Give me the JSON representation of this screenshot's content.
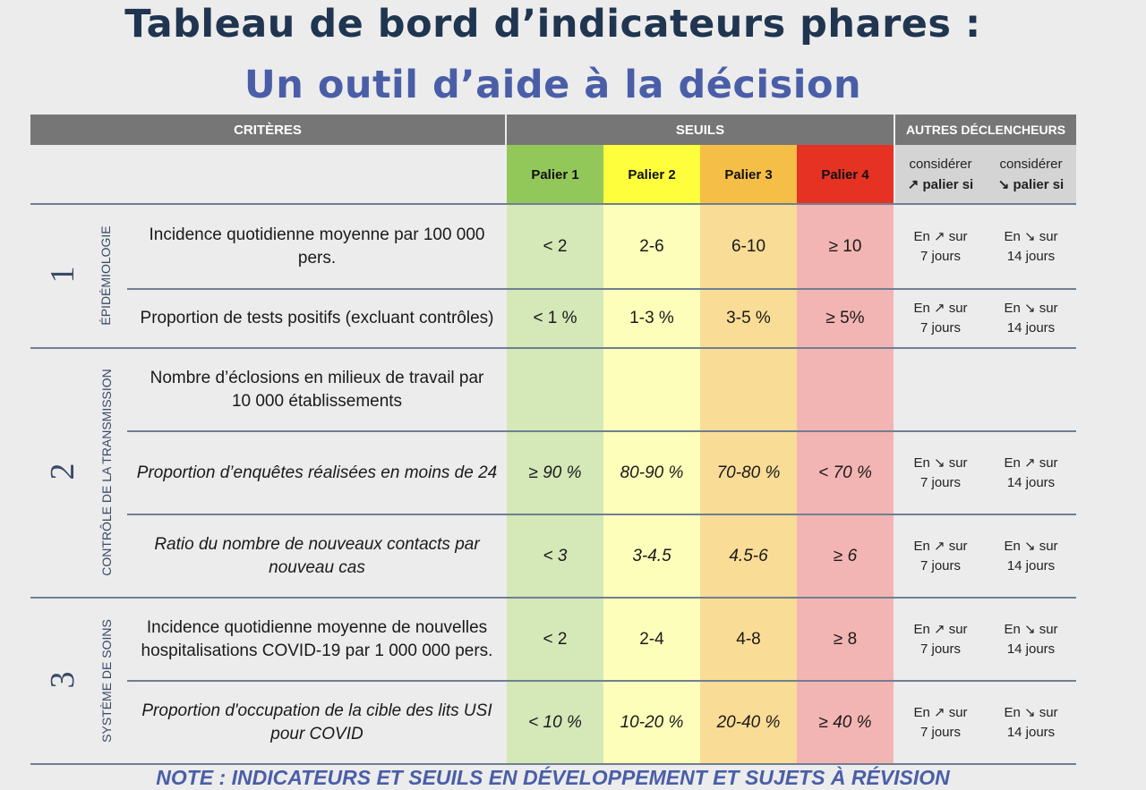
{
  "title": {
    "line1": "Tableau de bord d’indicateurs phares :",
    "line2": "Un outil d’aide à la décision"
  },
  "header": {
    "criteres": "CRITÈRES",
    "seuils": "SEUILS",
    "autres": "AUTRES DÉCLENCHEURS"
  },
  "paliers": [
    "Palier 1",
    "Palier 2",
    "Palier 3",
    "Palier 4"
  ],
  "colors": {
    "palier_headers": [
      "#92c85a",
      "#fefe3c",
      "#f5be46",
      "#e63223"
    ],
    "palier_columns": [
      "#d4e8b8",
      "#fefebb",
      "#f9dc96",
      "#f3b5b3"
    ],
    "header_bar": "#767676",
    "title_dark": "#1f3550",
    "title_blue": "#4a5ea8"
  },
  "autres_headers": {
    "up": {
      "line1": "considérer",
      "line2": "↗ palier si"
    },
    "down": {
      "line1": "considérer",
      "line2": "↘ palier si"
    }
  },
  "sections": [
    {
      "num": "1",
      "label": "ÉPIDÉMIOLOGIE"
    },
    {
      "num": "2",
      "label": "CONTRÔLE DE LA TRANSMISSION"
    },
    {
      "num": "3",
      "label": "SYSTÈME DE SOINS"
    }
  ],
  "rows": [
    {
      "criterion": "Incidence quotidienne moyenne par 100 000 pers.",
      "values": [
        "< 2",
        "2-6",
        "6-10",
        "≥ 10"
      ],
      "trig_up": [
        "En ↗ sur",
        "7 jours"
      ],
      "trig_down": [
        "En ↘ sur",
        "14 jours"
      ]
    },
    {
      "criterion": "Proportion de tests positifs (excluant contrôles)",
      "values": [
        "< 1 %",
        "1-3 %",
        "3-5 %",
        "≥ 5%"
      ],
      "trig_up": [
        "En ↗ sur",
        "7 jours"
      ],
      "trig_down": [
        "En ↘ sur",
        "14 jours"
      ]
    },
    {
      "criterion": "Nombre d’éclosions en milieux de travail par 10 000 établissements",
      "values": [
        "",
        "",
        "",
        ""
      ],
      "trig_up": [
        "",
        ""
      ],
      "trig_down": [
        "",
        ""
      ]
    },
    {
      "criterion": "Proportion d’enquêtes réalisées en moins de 24",
      "values": [
        "≥ 90 %",
        "80-90 %",
        "70-80 %",
        "< 70 %"
      ],
      "trig_up": [
        "En ↘ sur",
        "7 jours"
      ],
      "trig_down": [
        "En ↗ sur",
        "14 jours"
      ]
    },
    {
      "criterion": "Ratio du nombre de nouveaux contacts par nouveau cas",
      "values": [
        "< 3",
        "3-4.5",
        "4.5-6",
        "≥ 6"
      ],
      "trig_up": [
        "En ↗ sur",
        "7 jours"
      ],
      "trig_down": [
        "En ↘ sur",
        "14 jours"
      ]
    },
    {
      "criterion": "Incidence quotidienne moyenne de nouvelles hospitalisations COVID-19 par 1 000 000 pers.",
      "values": [
        "< 2",
        "2-4",
        "4-8",
        "≥ 8"
      ],
      "trig_up": [
        "En ↗ sur",
        "7 jours"
      ],
      "trig_down": [
        "En ↘ sur",
        "14 jours"
      ]
    },
    {
      "criterion": "Proportion d'occupation de la cible des lits USI pour COVID",
      "values": [
        "< 10 %",
        "10-20 %",
        "20-40 %",
        "≥ 40 %"
      ],
      "trig_up": [
        "En ↗ sur",
        "7 jours"
      ],
      "trig_down": [
        "En ↘ sur",
        "14 jours"
      ]
    }
  ],
  "note": "NOTE : INDICATEURS ET SEUILS EN DÉVELOPPEMENT ET SUJETS À RÉVISION"
}
